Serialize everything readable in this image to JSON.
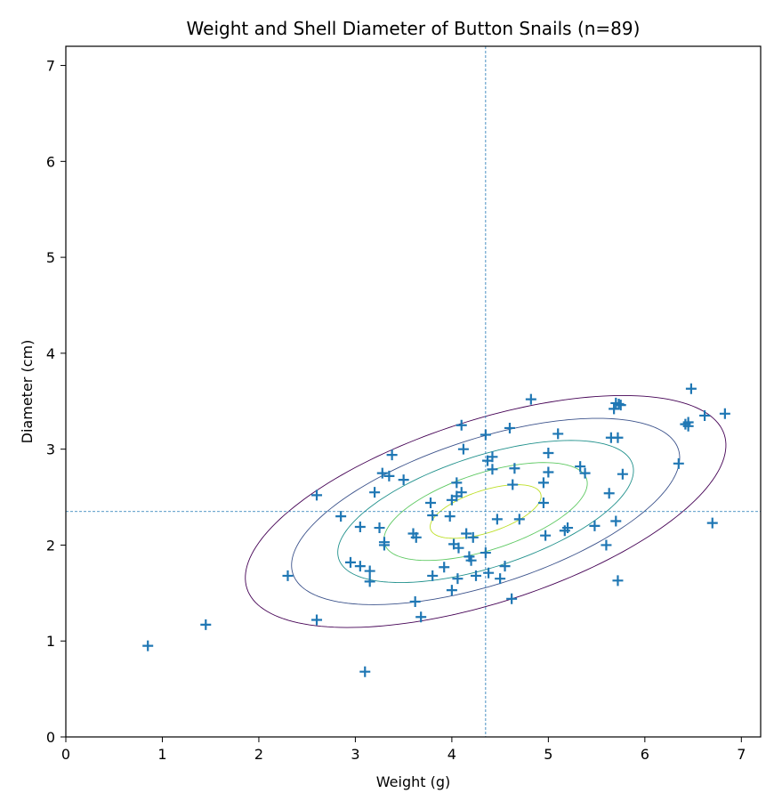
{
  "chart_data": {
    "type": "scatter",
    "title": "Weight and Shell Diameter of Button Snails (n=89)",
    "xlabel": "Weight (g)",
    "ylabel": "Diameter (cm)",
    "xlim": [
      0,
      7.2
    ],
    "ylim": [
      0,
      7.2
    ],
    "xticks": [
      0,
      1,
      2,
      3,
      4,
      5,
      6,
      7
    ],
    "yticks": [
      0,
      1,
      2,
      3,
      4,
      5,
      6,
      7
    ],
    "grid": false,
    "marker": "+",
    "point_color": "#1f77b4",
    "mean_lines": {
      "x": 4.35,
      "y": 2.35,
      "color": "#1f77b4",
      "style": "dashed"
    },
    "contours": {
      "type": "ellipse",
      "center": [
        4.35,
        2.35
      ],
      "colors": [
        "#440154",
        "#3b528b",
        "#21918c",
        "#5ec962",
        "#bddf26"
      ],
      "levels": [
        {
          "semi_major": 2.6,
          "semi_minor": 0.95
        },
        {
          "semi_major": 2.1,
          "semi_minor": 0.76
        },
        {
          "semi_major": 1.6,
          "semi_minor": 0.58
        },
        {
          "semi_major": 1.1,
          "semi_minor": 0.4
        },
        {
          "semi_major": 0.6,
          "semi_minor": 0.22
        }
      ],
      "angle_deg": 18
    },
    "points": [
      [
        0.85,
        0.95
      ],
      [
        1.45,
        1.17
      ],
      [
        2.3,
        1.68
      ],
      [
        2.6,
        2.52
      ],
      [
        2.6,
        1.22
      ],
      [
        2.85,
        2.3
      ],
      [
        2.95,
        1.82
      ],
      [
        3.05,
        1.78
      ],
      [
        3.05,
        2.19
      ],
      [
        3.1,
        0.68
      ],
      [
        3.15,
        1.73
      ],
      [
        3.15,
        1.62
      ],
      [
        3.2,
        2.55
      ],
      [
        3.25,
        2.18
      ],
      [
        3.28,
        2.75
      ],
      [
        3.3,
        2.03
      ],
      [
        3.3,
        2.0
      ],
      [
        3.35,
        2.72
      ],
      [
        3.38,
        2.94
      ],
      [
        3.5,
        2.68
      ],
      [
        3.6,
        2.12
      ],
      [
        3.62,
        1.41
      ],
      [
        3.63,
        2.08
      ],
      [
        3.68,
        1.25
      ],
      [
        3.78,
        2.44
      ],
      [
        3.8,
        2.31
      ],
      [
        3.8,
        1.68
      ],
      [
        3.92,
        1.77
      ],
      [
        3.98,
        2.3
      ],
      [
        4.0,
        1.53
      ],
      [
        4.0,
        2.47
      ],
      [
        4.02,
        2.01
      ],
      [
        4.05,
        2.51
      ],
      [
        4.05,
        2.65
      ],
      [
        4.06,
        1.65
      ],
      [
        4.07,
        1.97
      ],
      [
        4.1,
        2.55
      ],
      [
        4.1,
        3.25
      ],
      [
        4.12,
        3.0
      ],
      [
        4.15,
        2.12
      ],
      [
        4.18,
        1.88
      ],
      [
        4.2,
        1.84
      ],
      [
        4.22,
        2.08
      ],
      [
        4.25,
        1.68
      ],
      [
        4.35,
        3.15
      ],
      [
        4.35,
        1.92
      ],
      [
        4.37,
        2.88
      ],
      [
        4.38,
        1.71
      ],
      [
        4.42,
        2.92
      ],
      [
        4.42,
        2.79
      ],
      [
        4.47,
        2.27
      ],
      [
        4.5,
        1.65
      ],
      [
        4.55,
        1.78
      ],
      [
        4.6,
        3.22
      ],
      [
        4.62,
        1.44
      ],
      [
        4.63,
        2.63
      ],
      [
        4.65,
        2.8
      ],
      [
        4.7,
        2.27
      ],
      [
        4.82,
        3.52
      ],
      [
        4.95,
        2.44
      ],
      [
        4.95,
        2.65
      ],
      [
        4.97,
        2.1
      ],
      [
        5.0,
        2.96
      ],
      [
        5.0,
        2.76
      ],
      [
        5.1,
        3.16
      ],
      [
        5.17,
        2.15
      ],
      [
        5.2,
        2.18
      ],
      [
        5.33,
        2.82
      ],
      [
        5.38,
        2.75
      ],
      [
        5.48,
        2.2
      ],
      [
        5.6,
        2.0
      ],
      [
        5.63,
        2.54
      ],
      [
        5.65,
        3.12
      ],
      [
        5.68,
        3.42
      ],
      [
        5.7,
        3.48
      ],
      [
        5.7,
        2.25
      ],
      [
        5.72,
        3.12
      ],
      [
        5.72,
        1.63
      ],
      [
        5.73,
        3.47
      ],
      [
        5.75,
        3.46
      ],
      [
        5.77,
        2.74
      ],
      [
        6.35,
        2.85
      ],
      [
        6.42,
        3.26
      ],
      [
        6.45,
        3.28
      ],
      [
        6.48,
        3.63
      ],
      [
        6.62,
        3.35
      ],
      [
        6.7,
        2.23
      ],
      [
        6.83,
        3.37
      ],
      [
        6.45,
        3.24
      ]
    ]
  }
}
